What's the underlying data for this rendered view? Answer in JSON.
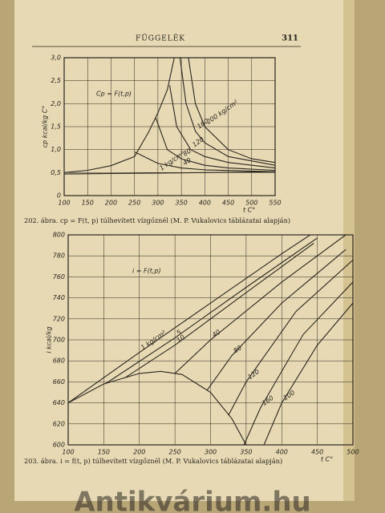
{
  "page": {
    "header": "FÜGGELÉK",
    "page_number": "311",
    "captions": [
      "202. ábra. cp = F(t, p) túlhevített vízgőznél (M. P. Vukalovics táblázatai alapján)",
      "203. ábra. i = f(t, p) túlhevített vízgőznél (M. P. Vukalovics táblázatai alapján)"
    ],
    "watermark": "Antikvárium.hu"
  },
  "chart_data": [
    {
      "type": "line",
      "title": "Cp = F(t,p)",
      "x_label": "t C°",
      "y_label": "cp kcal/kg C°",
      "xlim": [
        100,
        550
      ],
      "ylim": [
        0,
        3.0
      ],
      "xticks": [
        100,
        150,
        200,
        250,
        300,
        350,
        400,
        450,
        500,
        550
      ],
      "yticks": [
        0,
        {
          "value": 0.5,
          "label": "0,5"
        },
        {
          "value": 1.0,
          "label": "1,0"
        },
        {
          "value": 1.5,
          "label": "1,5"
        },
        {
          "value": 2.0,
          "label": "2,0"
        },
        {
          "value": 2.5,
          "label": "2,5"
        },
        {
          "value": 3.0,
          "label": "3,0"
        }
      ],
      "grid": true,
      "color": "#2b2620",
      "series": [
        {
          "name": "1 kg/cm²",
          "x": [
            100,
            200,
            300,
            400,
            550
          ],
          "values": [
            0.47,
            0.48,
            0.49,
            0.5,
            0.52
          ]
        },
        {
          "name": "40",
          "x": [
            250,
            300,
            350,
            400,
            550
          ],
          "values": [
            0.95,
            0.7,
            0.6,
            0.56,
            0.52
          ]
        },
        {
          "name": "80",
          "x": [
            295,
            320,
            350,
            400,
            450,
            550
          ],
          "values": [
            1.7,
            1.0,
            0.8,
            0.66,
            0.6,
            0.55
          ]
        },
        {
          "name": "120",
          "x": [
            325,
            340,
            370,
            400,
            450,
            550
          ],
          "values": [
            2.4,
            1.5,
            1.0,
            0.85,
            0.72,
            0.6
          ]
        },
        {
          "name": "160",
          "x": [
            347,
            360,
            380,
            400,
            450,
            550
          ],
          "values": [
            3.0,
            2.0,
            1.4,
            1.15,
            0.85,
            0.66
          ]
        },
        {
          "name": "200 kg/cm²",
          "x": [
            365,
            380,
            400,
            450,
            500,
            550
          ],
          "values": [
            3.0,
            2.0,
            1.5,
            1.0,
            0.8,
            0.72
          ]
        },
        {
          "name": "",
          "x": [
            100,
            150,
            200,
            250,
            280,
            300,
            320,
            335
          ],
          "values": [
            0.5,
            0.55,
            0.65,
            0.85,
            1.38,
            1.8,
            2.3,
            3.0
          ]
        }
      ]
    },
    {
      "type": "line",
      "title": "i = F(t,p)",
      "x_label": "t C°",
      "y_label": "i kcal/kg",
      "xlim": [
        100,
        500
      ],
      "ylim": [
        600,
        800
      ],
      "xticks": [
        100,
        150,
        200,
        250,
        300,
        350,
        400,
        450,
        500
      ],
      "yticks": [
        600,
        620,
        640,
        660,
        680,
        700,
        720,
        740,
        760,
        780,
        800
      ],
      "grid": true,
      "color": "#2b2620",
      "series": [
        {
          "name": "1 kg/cm²",
          "x": [
            100,
            200,
            300,
            400,
            440
          ],
          "values": [
            640,
            688,
            735,
            782,
            800
          ]
        },
        {
          "name": "5",
          "x": [
            152,
            250,
            350,
            450
          ],
          "values": [
            658,
            702,
            750,
            797
          ]
        },
        {
          "name": "10",
          "x": [
            180,
            250,
            350,
            445
          ],
          "values": [
            664,
            695,
            745,
            792
          ]
        },
        {
          "name": "40",
          "x": [
            250,
            300,
            400,
            490
          ],
          "values": [
            668,
            700,
            755,
            800
          ]
        },
        {
          "name": "80",
          "x": [
            295,
            330,
            400,
            490
          ],
          "values": [
            652,
            685,
            735,
            786
          ]
        },
        {
          "name": "120",
          "x": [
            325,
            350,
            420,
            500
          ],
          "values": [
            628,
            660,
            727,
            776
          ]
        },
        {
          "name": "160",
          "x": [
            347,
            370,
            430,
            500
          ],
          "values": [
            600,
            635,
            705,
            755
          ]
        },
        {
          "name": "200",
          "x": [
            375,
            400,
            450,
            500
          ],
          "values": [
            600,
            640,
            695,
            735
          ]
        },
        {
          "name": "",
          "x": [
            100,
            150,
            200,
            230,
            260,
            300,
            330,
            350
          ],
          "values": [
            640,
            658,
            668,
            670,
            667,
            650,
            625,
            600
          ]
        }
      ]
    }
  ]
}
